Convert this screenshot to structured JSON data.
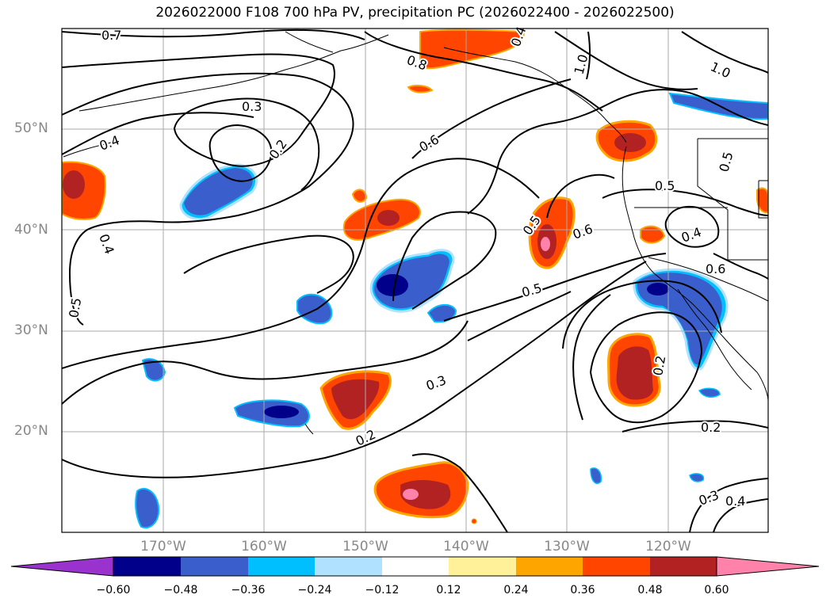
{
  "title": "2026022000 F108 700 hPa PV, precipitation PC (2026022400 - 2026022500)",
  "lat_labels": [
    "50°N",
    "40°N",
    "30°N",
    "20°N"
  ],
  "lon_labels": [
    "170°W",
    "160°W",
    "150°W",
    "140°W",
    "130°W",
    "120°W"
  ],
  "contour_labels": [
    "0.7",
    "0.8",
    "1.0",
    "1.0",
    "0.3",
    "0.2",
    "0.4",
    "0.6",
    "0.5",
    "0.5",
    "0.6",
    "0.4",
    "0.5",
    "0.5",
    "0.4",
    "0.3",
    "0.2",
    "0.2",
    "0.2",
    "0.3",
    "0.4",
    "0.6",
    "0.5",
    "0.4"
  ],
  "colorbar": {
    "ticks": [
      "−0.60",
      "−0.48",
      "−0.36",
      "−0.24",
      "−0.12",
      "0.12",
      "0.24",
      "0.36",
      "0.48",
      "0.60"
    ],
    "colors": [
      "#9a32cd",
      "#00008b",
      "#3a5fcd",
      "#00bfff",
      "#b0e2ff",
      "#ffffff",
      "#fff09a",
      "#ffa500",
      "#ff4500",
      "#b22222",
      "#ff82ab"
    ]
  }
}
